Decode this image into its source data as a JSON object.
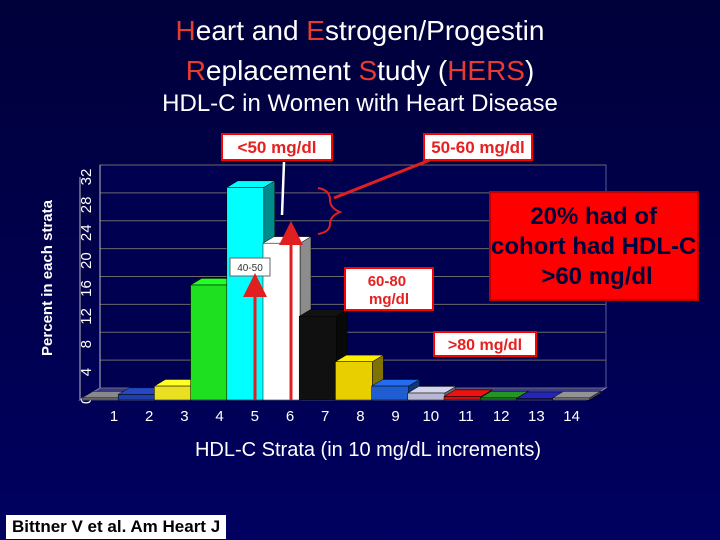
{
  "title": {
    "line1": [
      {
        "text": "H",
        "hl": true
      },
      {
        "text": "eart and ",
        "hl": false
      },
      {
        "text": "E",
        "hl": true
      },
      {
        "text": "strogen/Progestin",
        "hl": false
      }
    ],
    "line2": [
      {
        "text": "R",
        "hl": true
      },
      {
        "text": "eplacement ",
        "hl": false
      },
      {
        "text": "S",
        "hl": true
      },
      {
        "text": "tudy (",
        "hl": false
      },
      {
        "text": "HERS",
        "hl": true
      },
      {
        "text": ")",
        "hl": false
      }
    ]
  },
  "subtitle": "HDL-C in Women with Heart Disease",
  "citation": "Bittner V et al. Am Heart J",
  "colors": {
    "background": "#000040",
    "accent_red": "#e63b2e",
    "highlight_box": "#ff0000",
    "callout_text": "#00003c",
    "grid_line": "#6a6a6a"
  },
  "chart_data": {
    "type": "bar",
    "ylabel": "Percent in each strata",
    "xlabel": "HDL-C Strata (in 10 mg/dL increments)",
    "ylim": [
      0,
      32
    ],
    "yticks": [
      "0",
      "4",
      "8",
      "12",
      "16",
      "20",
      "24",
      "28",
      "32"
    ],
    "categories": [
      "1",
      "2",
      "3",
      "4",
      "5",
      "6",
      "7",
      "8",
      "9",
      "10",
      "11",
      "12",
      "13",
      "14"
    ],
    "values": [
      0.3,
      0.8,
      2.0,
      16.5,
      30.5,
      22.5,
      12.0,
      5.5,
      2.0,
      1.0,
      0.5,
      0.3,
      0.2,
      0.3
    ],
    "bar_colors": [
      "#777777",
      "#1f3faa",
      "#e8e020",
      "#1ee020",
      "#00ffff",
      "#ffffff",
      "#101010",
      "#e8d000",
      "#1f5ed0",
      "#b8b8d0",
      "#d01010",
      "#208020",
      "#2020a0",
      "#808080"
    ],
    "annotations": {
      "lt50": "<50 mg/dl",
      "r5060": "50-60 mg/dl",
      "r4050": "40-50",
      "r6080": "60-80 mg/dl",
      "gt80": ">80 mg/dl",
      "callout": "20% had of cohort had HDL-C >60 mg/dl"
    }
  }
}
